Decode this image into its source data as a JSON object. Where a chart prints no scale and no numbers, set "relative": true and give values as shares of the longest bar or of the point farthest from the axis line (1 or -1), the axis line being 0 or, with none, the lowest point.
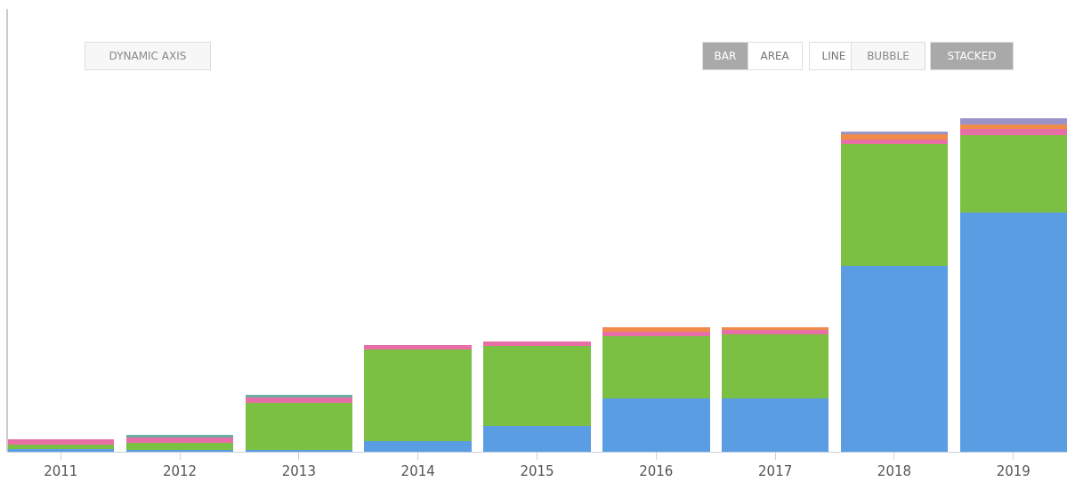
{
  "chart_data": {
    "type": "bar",
    "relative": true,
    "stacked": true,
    "categories": [
      "2011",
      "2012",
      "2013",
      "2014",
      "2015",
      "2016",
      "2017",
      "2018",
      "2019"
    ],
    "series": [
      {
        "color": "#5a9de3",
        "values": [
          0.008,
          0.005,
          0.005,
          0.032,
          0.077,
          0.16,
          0.16,
          0.557,
          0.717
        ]
      },
      {
        "color": "#7bc043",
        "values": [
          0.013,
          0.021,
          0.141,
          0.275,
          0.24,
          0.187,
          0.192,
          0.365,
          0.232
        ]
      },
      {
        "color": "#e86fa5",
        "values": [
          0.016,
          0.016,
          0.016,
          0.013,
          0.013,
          0.013,
          0.013,
          0.013,
          0.019
        ]
      },
      {
        "color": "#ef8c4a",
        "values": [
          0,
          0,
          0,
          0,
          0,
          0.013,
          0.008,
          0.016,
          0.013
        ]
      },
      {
        "color": "#6aaea3",
        "values": [
          0,
          0.008,
          0.008,
          0,
          0,
          0,
          0,
          0,
          0
        ]
      },
      {
        "color": "#9b93c9",
        "values": [
          0,
          0,
          0,
          0,
          0,
          0,
          0,
          0.008,
          0.019
        ]
      }
    ],
    "annotations": [
      "DYNAMIC AXIS",
      "BAR",
      "AREA",
      "LINE",
      "BUBBLE",
      "STACKED"
    ]
  }
}
